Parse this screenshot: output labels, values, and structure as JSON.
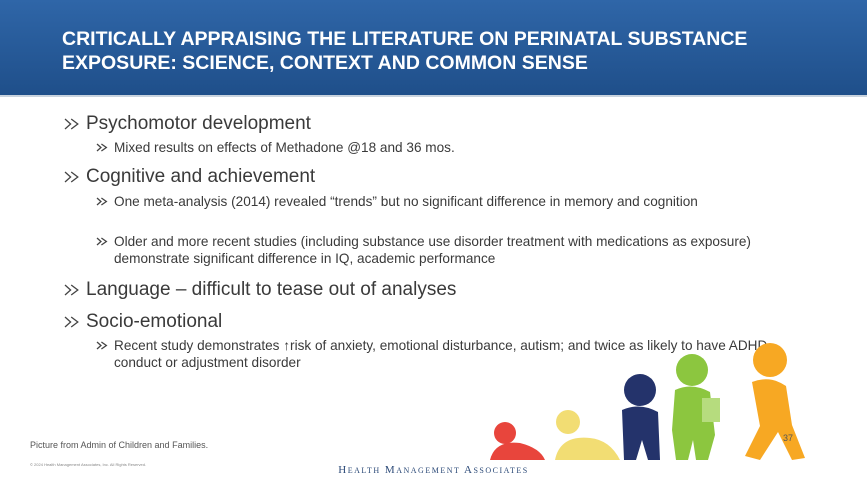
{
  "header": {
    "title": "CRITICALLY APPRAISING THE LITERATURE ON PERINATAL SUBSTANCE EXPOSURE: SCIENCE, CONTEXT AND COMMON SENSE"
  },
  "bullets": [
    {
      "text": "Psychomotor development",
      "subs": [
        "Mixed results on effects of Methadone @18 and 36 mos."
      ]
    },
    {
      "text": "Cognitive and achievement",
      "subs": [
        "One meta-analysis (2014) revealed “trends” but no significant difference in memory and cognition",
        "Older and more recent studies (including substance use disorder treatment with medications as exposure) demonstrate significant difference in IQ, academic performance"
      ]
    },
    {
      "text": "Language – difficult to tease out of analyses",
      "subs": []
    },
    {
      "text": "Socio-emotional",
      "subs": [
        "Recent study demonstrates ↑risk of anxiety, emotional disturbance, autism; and twice as likely to have ADHD, conduct or adjustment disorder"
      ]
    }
  ],
  "footer": {
    "caption": "Picture from Admin of Children and Families.",
    "copyright": "© 2024 Health Management Associates, Inc. All Rights Reserved.",
    "logo": "Health Management Associates",
    "page": "37"
  }
}
